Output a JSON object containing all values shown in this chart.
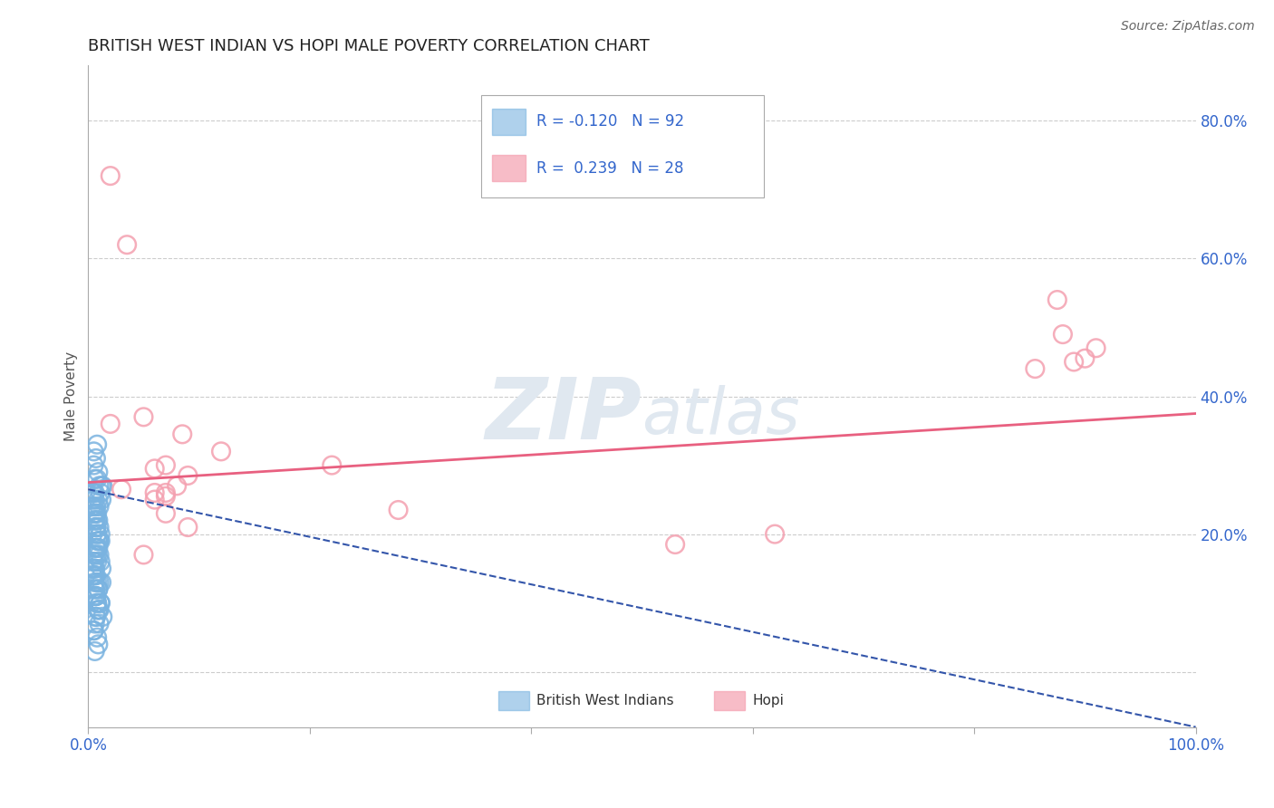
{
  "title": "BRITISH WEST INDIAN VS HOPI MALE POVERTY CORRELATION CHART",
  "source": "Source: ZipAtlas.com",
  "ylabel": "Male Poverty",
  "xlim": [
    0.0,
    1.0
  ],
  "ylim": [
    -0.08,
    0.88
  ],
  "x_ticks": [
    0.0,
    0.2,
    0.4,
    0.6,
    0.8,
    1.0
  ],
  "x_tick_labels": [
    "0.0%",
    "",
    "",
    "",
    "",
    "100.0%"
  ],
  "y_ticks": [
    0.0,
    0.2,
    0.4,
    0.6,
    0.8
  ],
  "y_tick_labels": [
    "",
    "20.0%",
    "40.0%",
    "60.0%",
    "80.0%"
  ],
  "grid_color": "#cccccc",
  "background_color": "#ffffff",
  "blue_color": "#7ab3e0",
  "pink_color": "#f4a0b0",
  "blue_line_color": "#3355aa",
  "pink_line_color": "#e86080",
  "R_blue": -0.12,
  "N_blue": 92,
  "R_pink": 0.239,
  "N_pink": 28,
  "legend_label_blue": "British West Indians",
  "legend_label_pink": "Hopi",
  "watermark_zip": "ZIP",
  "watermark_atlas": "atlas",
  "blue_line_x0": 0.0,
  "blue_line_y0": 0.265,
  "blue_line_x1": 1.0,
  "blue_line_y1": -0.08,
  "pink_line_x0": 0.0,
  "pink_line_y0": 0.275,
  "pink_line_x1": 1.0,
  "pink_line_y1": 0.375,
  "blue_points_x": [
    0.005,
    0.008,
    0.006,
    0.012,
    0.007,
    0.004,
    0.009,
    0.006,
    0.01,
    0.007,
    0.005,
    0.011,
    0.008,
    0.006,
    0.013,
    0.007,
    0.005,
    0.009,
    0.006,
    0.01,
    0.004,
    0.008,
    0.012,
    0.007,
    0.005,
    0.009,
    0.006,
    0.011,
    0.008,
    0.007,
    0.003,
    0.01,
    0.006,
    0.008,
    0.005,
    0.009,
    0.007,
    0.011,
    0.006,
    0.008,
    0.004,
    0.007,
    0.01,
    0.005,
    0.009,
    0.006,
    0.008,
    0.012,
    0.007,
    0.005,
    0.009,
    0.006,
    0.01,
    0.004,
    0.008,
    0.006,
    0.011,
    0.007,
    0.005,
    0.009,
    0.006,
    0.01,
    0.008,
    0.007,
    0.005,
    0.009,
    0.006,
    0.011,
    0.008,
    0.007,
    0.004,
    0.01,
    0.006,
    0.008,
    0.012,
    0.007,
    0.005,
    0.009,
    0.006,
    0.01,
    0.008,
    0.013,
    0.007,
    0.005,
    0.009,
    0.006,
    0.011,
    0.008,
    0.007,
    0.005,
    0.009,
    0.006
  ],
  "blue_points_y": [
    0.3,
    0.33,
    0.28,
    0.27,
    0.31,
    0.25,
    0.29,
    0.26,
    0.27,
    0.24,
    0.32,
    0.26,
    0.28,
    0.25,
    0.27,
    0.23,
    0.26,
    0.25,
    0.22,
    0.24,
    0.26,
    0.23,
    0.25,
    0.21,
    0.24,
    0.22,
    0.23,
    0.2,
    0.22,
    0.21,
    0.24,
    0.19,
    0.22,
    0.2,
    0.23,
    0.18,
    0.21,
    0.19,
    0.22,
    0.17,
    0.2,
    0.18,
    0.21,
    0.16,
    0.19,
    0.17,
    0.2,
    0.15,
    0.18,
    0.16,
    0.19,
    0.14,
    0.17,
    0.15,
    0.18,
    0.13,
    0.16,
    0.14,
    0.17,
    0.12,
    0.15,
    0.13,
    0.16,
    0.11,
    0.14,
    0.12,
    0.15,
    0.1,
    0.13,
    0.11,
    0.14,
    0.09,
    0.12,
    0.1,
    0.13,
    0.08,
    0.11,
    0.09,
    0.12,
    0.07,
    0.1,
    0.08,
    0.11,
    0.06,
    0.09,
    0.07,
    0.1,
    0.05,
    0.08,
    0.06,
    0.04,
    0.03
  ],
  "pink_points_x": [
    0.02,
    0.035,
    0.02,
    0.12,
    0.05,
    0.22,
    0.07,
    0.06,
    0.07,
    0.08,
    0.06,
    0.07,
    0.09,
    0.53,
    0.875,
    0.88,
    0.89,
    0.9,
    0.91,
    0.855,
    0.62,
    0.085,
    0.28,
    0.07,
    0.05,
    0.09,
    0.06,
    0.03
  ],
  "pink_points_y": [
    0.72,
    0.62,
    0.36,
    0.32,
    0.37,
    0.3,
    0.3,
    0.26,
    0.26,
    0.27,
    0.25,
    0.23,
    0.21,
    0.185,
    0.54,
    0.49,
    0.45,
    0.455,
    0.47,
    0.44,
    0.2,
    0.345,
    0.235,
    0.255,
    0.17,
    0.285,
    0.295,
    0.265
  ]
}
